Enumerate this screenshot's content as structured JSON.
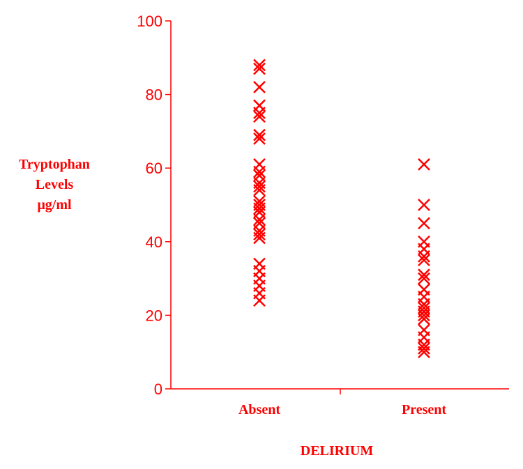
{
  "chart_data": {
    "type": "scatter",
    "title": "",
    "xlabel": "DELIRIUM",
    "ylabel_lines": [
      "Tryptophan",
      "Levels",
      "μg/ml"
    ],
    "categories": [
      "Absent",
      "Present"
    ],
    "ylim": [
      0,
      100
    ],
    "yticks": [
      "0",
      "20",
      "40",
      "60",
      "80",
      "100"
    ],
    "marker": "x",
    "color": "#ff0000",
    "grid": false,
    "series": [
      {
        "category": "Absent",
        "values": [
          88,
          87,
          82,
          77,
          75,
          74,
          69,
          68,
          61,
          59,
          58,
          56,
          55,
          54,
          51,
          50,
          49,
          48,
          46,
          45,
          43,
          42,
          41,
          34,
          32,
          30,
          28,
          26,
          24
        ]
      },
      {
        "category": "Present",
        "values": [
          61,
          50,
          45,
          40,
          38,
          36,
          35,
          31,
          30,
          27,
          25,
          23,
          22,
          21,
          20,
          19,
          16,
          14,
          12,
          11,
          10
        ]
      }
    ]
  }
}
